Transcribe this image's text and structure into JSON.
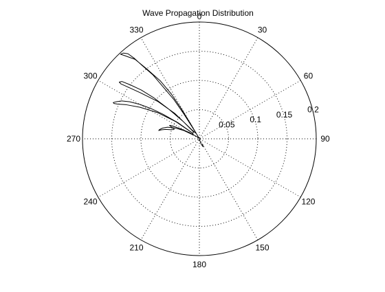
{
  "chart_data": {
    "type": "polar",
    "title": "Wave Propagation Distribution",
    "theta_direction": "clockwise",
    "theta_zero_location": "top",
    "angle_ticks": [
      0,
      30,
      60,
      90,
      120,
      150,
      180,
      210,
      240,
      270,
      300,
      330
    ],
    "angle_tick_labels": [
      "0",
      "30",
      "60",
      "90",
      "120",
      "150",
      "180",
      "210",
      "240",
      "270",
      "300",
      "330"
    ],
    "radial_ticks": [
      0.05,
      0.1,
      0.15,
      0.2
    ],
    "radial_tick_labels": [
      "0.05",
      "0.1",
      "0.15",
      "0.2"
    ],
    "rlim": [
      0,
      0.2
    ],
    "grid": true,
    "line_color": "#000000",
    "series": [
      {
        "theta_deg": [
          150,
          151,
          153,
          155,
          156,
          158,
          160,
          162,
          330,
          329.5,
          329,
          328,
          326,
          323,
          321,
          318,
          317,
          318.5,
          320,
          321,
          322,
          324,
          325,
          327,
          328,
          330,
          320,
          316,
          312,
          308,
          306,
          305,
          305.3,
          306.5,
          308,
          310,
          312,
          314,
          317,
          320,
          310,
          306,
          302,
          298,
          295,
          293,
          292.5,
          292.8,
          294,
          296,
          298,
          300,
          302,
          304,
          307,
          310,
          302,
          298,
          294,
          290,
          286,
          283,
          281.5,
          282,
          283.5,
          285.5,
          287.5,
          289.5,
          291,
          292,
          293,
          294,
          295,
          296,
          298,
          302,
          330
        ],
        "r": [
          0.01,
          0.012,
          0.014,
          0.015,
          0.014,
          0.012,
          0.01,
          0.008,
          0.002,
          0.03,
          0.06,
          0.09,
          0.12,
          0.15,
          0.175,
          0.192,
          0.198,
          0.196,
          0.19,
          0.178,
          0.16,
          0.135,
          0.11,
          0.08,
          0.05,
          0.01,
          0.02,
          0.06,
          0.095,
          0.128,
          0.15,
          0.164,
          0.168,
          0.165,
          0.15,
          0.13,
          0.105,
          0.075,
          0.04,
          0.015,
          0.015,
          0.05,
          0.085,
          0.115,
          0.138,
          0.152,
          0.158,
          0.16,
          0.156,
          0.148,
          0.135,
          0.118,
          0.098,
          0.075,
          0.045,
          0.015,
          0.012,
          0.03,
          0.045,
          0.058,
          0.066,
          0.07,
          0.071,
          0.07,
          0.066,
          0.06,
          0.052,
          0.047,
          0.046,
          0.048,
          0.052,
          0.056,
          0.054,
          0.047,
          0.036,
          0.02,
          0.002
        ]
      }
    ]
  }
}
